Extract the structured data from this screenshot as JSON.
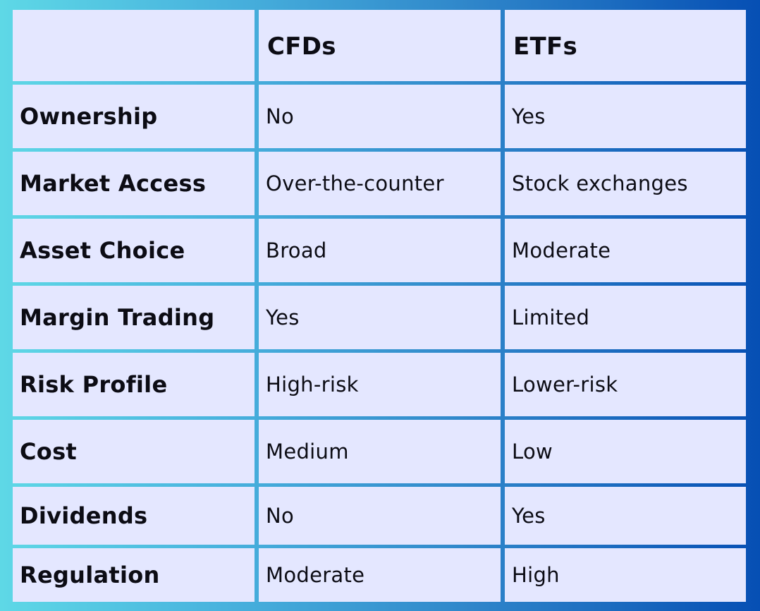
{
  "table": {
    "headers": [
      "",
      "CFDs",
      "ETFs"
    ],
    "rows": [
      {
        "label": "Ownership",
        "cfds": "No",
        "etfs": "Yes"
      },
      {
        "label": "Market Access",
        "cfds": "Over-the-counter",
        "etfs": "Stock exchanges"
      },
      {
        "label": "Asset Choice",
        "cfds": "Broad",
        "etfs": "Moderate"
      },
      {
        "label": "Margin Trading",
        "cfds": "Yes",
        "etfs": "Limited"
      },
      {
        "label": "Risk Profile",
        "cfds": "High-risk",
        "etfs": "Lower-risk"
      },
      {
        "label": "Cost",
        "cfds": "Medium",
        "etfs": "Low"
      },
      {
        "label": "Dividends",
        "cfds": "No",
        "etfs": "Yes"
      },
      {
        "label": "Regulation",
        "cfds": "Moderate",
        "etfs": "High"
      }
    ]
  },
  "colors": {
    "cell_background": "#e4e7ff",
    "gradient_start": "#5ed8e6",
    "gradient_end": "#064fb4",
    "text": "#0c0c14"
  }
}
